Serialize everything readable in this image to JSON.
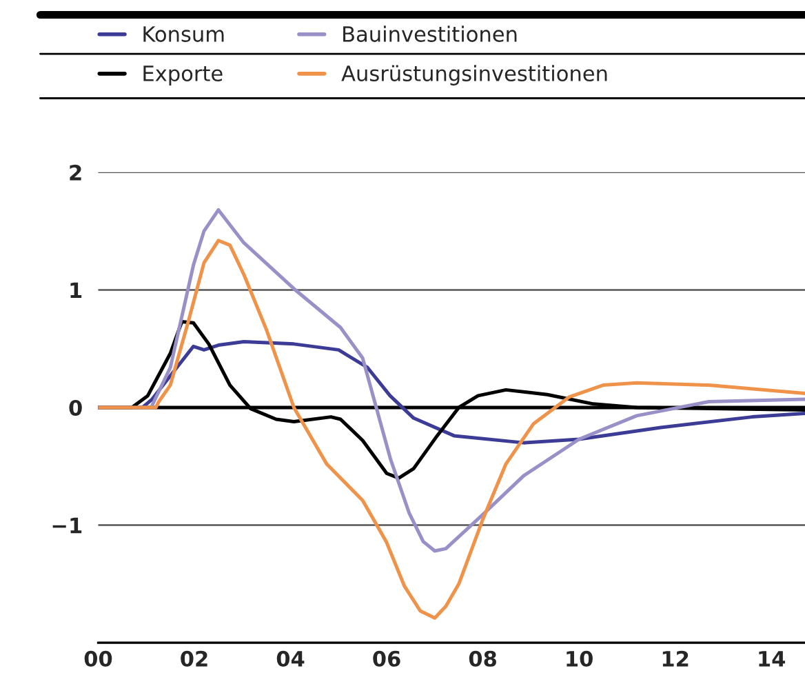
{
  "chart_data": {
    "type": "line",
    "xlim": [
      0,
      14.7
    ],
    "xticks": [
      {
        "value": 0,
        "label": "00"
      },
      {
        "value": 2,
        "label": "02"
      },
      {
        "value": 4,
        "label": "04"
      },
      {
        "value": 6,
        "label": "06"
      },
      {
        "value": 8,
        "label": "08"
      },
      {
        "value": 10,
        "label": "10"
      },
      {
        "value": 12,
        "label": "12"
      },
      {
        "value": 14,
        "label": "14"
      }
    ],
    "ylim": [
      -2,
      2
    ],
    "yticks": [
      {
        "value": -2,
        "label": null
      },
      {
        "value": -1,
        "label": "−1"
      },
      0,
      1,
      2
    ],
    "grid": "y",
    "legend": "top",
    "line_style": "solid",
    "ref_lines": [
      {
        "axis": "y",
        "value": 0,
        "color": "#000000"
      }
    ],
    "series": [
      {
        "name": "Konsum",
        "color": "#3c3c96",
        "x": [
          0,
          0.92,
          1.12,
          1.5,
          1.98,
          2.2,
          2.5,
          3.03,
          4.07,
          5.0,
          5.6,
          6.07,
          6.56,
          7.4,
          8.85,
          10,
          11.7,
          13.6,
          14.7
        ],
        "values": [
          0,
          0,
          0.07,
          0.27,
          0.52,
          0.49,
          0.53,
          0.56,
          0.54,
          0.49,
          0.34,
          0.1,
          -0.09,
          -0.24,
          -0.3,
          -0.27,
          -0.17,
          -0.08,
          -0.05
        ]
      },
      {
        "name": "Exporte",
        "color": "#000000",
        "x": [
          0,
          0.7,
          1.03,
          1.5,
          1.74,
          1.98,
          2.3,
          2.74,
          3.17,
          3.7,
          4.07,
          4.84,
          5.04,
          5.5,
          6.0,
          6.25,
          6.56,
          7.05,
          7.5,
          7.9,
          8.48,
          9.34,
          10.3,
          11.2,
          14.7
        ],
        "values": [
          0,
          0,
          0.1,
          0.46,
          0.73,
          0.72,
          0.54,
          0.19,
          -0.01,
          -0.1,
          -0.12,
          -0.08,
          -0.1,
          -0.28,
          -0.56,
          -0.6,
          -0.52,
          -0.24,
          0,
          0.1,
          0.15,
          0.11,
          0.03,
          0,
          -0.02
        ]
      },
      {
        "name": "Bauinvestitionen",
        "color": "#9a90c8",
        "x": [
          0,
          1.1,
          1.5,
          1.98,
          2.2,
          2.5,
          3.03,
          4.07,
          5.04,
          5.5,
          6.08,
          6.47,
          6.76,
          7.0,
          7.23,
          8.0,
          8.85,
          10,
          11.2,
          12.7,
          14.7
        ],
        "values": [
          0,
          0,
          0.34,
          1.21,
          1.5,
          1.68,
          1.4,
          1.01,
          0.68,
          0.42,
          -0.44,
          -0.9,
          -1.14,
          -1.22,
          -1.2,
          -0.91,
          -0.58,
          -0.27,
          -0.07,
          0.05,
          0.07
        ]
      },
      {
        "name": "Ausrüstungsinvestitionen",
        "color": "#f0934a",
        "x": [
          0,
          1.2,
          1.26,
          1.5,
          1.88,
          2.2,
          2.5,
          2.74,
          3.03,
          3.5,
          4.07,
          4.75,
          5.5,
          5.99,
          6.37,
          6.7,
          7.0,
          7.23,
          7.5,
          8.0,
          8.48,
          9.05,
          9.8,
          10.5,
          11.2,
          12.7,
          14.7
        ],
        "values": [
          0,
          0,
          0.05,
          0.19,
          0.74,
          1.23,
          1.42,
          1.38,
          1.13,
          0.66,
          0,
          -0.48,
          -0.79,
          -1.14,
          -1.52,
          -1.73,
          -1.79,
          -1.69,
          -1.5,
          -0.95,
          -0.48,
          -0.14,
          0.09,
          0.19,
          0.21,
          0.19,
          0.12
        ]
      }
    ]
  }
}
